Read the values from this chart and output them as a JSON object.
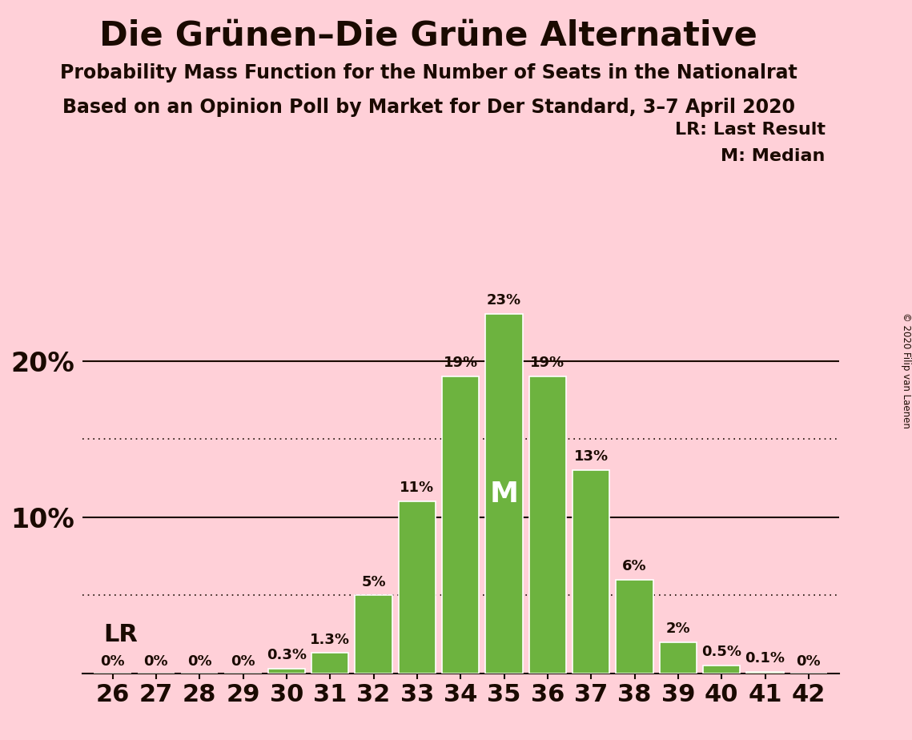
{
  "title": "Die Grünen–Die Grüne Alternative",
  "subtitle1": "Probability Mass Function for the Number of Seats in the Nationalrat",
  "subtitle2": "Based on an Opinion Poll by Market for Der Standard, 3–7 April 2020",
  "copyright": "© 2020 Filip van Laenen",
  "legend_lr": "LR: Last Result",
  "legend_m": "M: Median",
  "seats": [
    26,
    27,
    28,
    29,
    30,
    31,
    32,
    33,
    34,
    35,
    36,
    37,
    38,
    39,
    40,
    41,
    42
  ],
  "probabilities": [
    0.0,
    0.0,
    0.0,
    0.0,
    0.3,
    1.3,
    5.0,
    11.0,
    19.0,
    23.0,
    19.0,
    13.0,
    6.0,
    2.0,
    0.5,
    0.1,
    0.0
  ],
  "labels": [
    "0%",
    "0%",
    "0%",
    "0%",
    "0.3%",
    "1.3%",
    "5%",
    "11%",
    "19%",
    "23%",
    "19%",
    "13%",
    "6%",
    "2%",
    "0.5%",
    "0.1%",
    "0%"
  ],
  "show_label": [
    true,
    true,
    true,
    true,
    true,
    true,
    true,
    true,
    true,
    true,
    true,
    true,
    true,
    true,
    true,
    true,
    true
  ],
  "bar_color": "#6db33f",
  "bar_edge_color": "#ffffff",
  "background_color": "#ffd0d8",
  "text_color": "#1a0a00",
  "median_seat": 35,
  "lr_seat": 26,
  "dotted_lines": [
    5.0,
    15.0
  ],
  "solid_lines": [
    10.0,
    20.0
  ],
  "ylim": [
    0,
    27
  ]
}
